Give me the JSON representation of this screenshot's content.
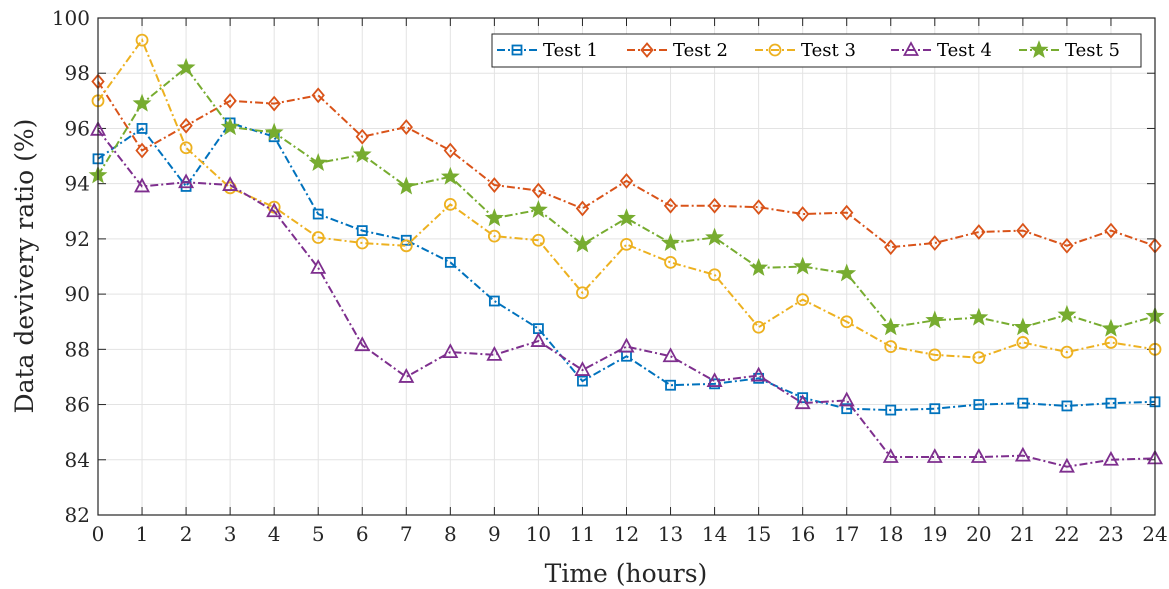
{
  "chart_data": {
    "type": "line",
    "xlabel": "Time (hours)",
    "ylabel": "Data devivery ratio (%)",
    "xlim": [
      0,
      24
    ],
    "ylim": [
      82,
      100
    ],
    "x": [
      0,
      1,
      2,
      3,
      4,
      5,
      6,
      7,
      8,
      9,
      10,
      11,
      12,
      13,
      14,
      15,
      16,
      17,
      18,
      19,
      20,
      21,
      22,
      23,
      24
    ],
    "x_ticks": [
      "0",
      "1",
      "2",
      "3",
      "4",
      "5",
      "6",
      "7",
      "8",
      "9",
      "10",
      "11",
      "12",
      "13",
      "14",
      "15",
      "16",
      "17",
      "18",
      "19",
      "20",
      "21",
      "22",
      "23",
      "24"
    ],
    "y_ticks": [
      "82",
      "84",
      "86",
      "88",
      "90",
      "92",
      "94",
      "96",
      "98",
      "100"
    ],
    "grid": true,
    "legend_position": "top-right",
    "legend_orientation": "horizontal",
    "series": [
      {
        "name": "Test 1",
        "color": "#0072BD",
        "marker": "square",
        "values": [
          94.9,
          96.0,
          93.9,
          96.2,
          95.7,
          92.9,
          92.3,
          91.95,
          91.15,
          89.75,
          88.75,
          86.85,
          87.75,
          86.7,
          86.75,
          86.95,
          86.25,
          85.85,
          85.8,
          85.85,
          86.0,
          86.05,
          85.95,
          86.05,
          86.1
        ]
      },
      {
        "name": "Test 2",
        "color": "#D95319",
        "marker": "diamond",
        "values": [
          97.7,
          95.2,
          96.1,
          97.0,
          96.9,
          97.2,
          95.7,
          96.05,
          95.2,
          93.95,
          93.75,
          93.1,
          94.1,
          93.2,
          93.2,
          93.15,
          92.9,
          92.95,
          91.7,
          91.85,
          92.25,
          92.3,
          91.75,
          92.3,
          91.75
        ]
      },
      {
        "name": "Test 3",
        "color": "#EDB120",
        "marker": "circle",
        "values": [
          97.0,
          99.2,
          95.3,
          93.85,
          93.15,
          92.05,
          91.85,
          91.75,
          93.25,
          92.1,
          91.95,
          90.05,
          91.8,
          91.15,
          90.7,
          88.8,
          89.8,
          89.0,
          88.1,
          87.8,
          87.7,
          88.25,
          87.9,
          88.25,
          88.0
        ]
      },
      {
        "name": "Test 4",
        "color": "#7E2F8E",
        "marker": "triangle",
        "values": [
          95.95,
          93.9,
          94.05,
          93.95,
          93.0,
          90.95,
          88.15,
          87.0,
          87.9,
          87.8,
          88.3,
          87.25,
          88.1,
          87.75,
          86.85,
          87.05,
          86.05,
          86.15,
          84.1,
          84.1,
          84.1,
          84.15,
          83.75,
          84.0,
          84.05
        ]
      },
      {
        "name": "Test 5",
        "color": "#77AC30",
        "marker": "star",
        "values": [
          94.3,
          96.9,
          98.2,
          96.05,
          95.85,
          94.75,
          95.05,
          93.9,
          94.25,
          92.75,
          93.05,
          91.8,
          92.75,
          91.85,
          92.05,
          90.95,
          91.0,
          90.75,
          88.8,
          89.05,
          89.15,
          88.8,
          89.25,
          88.75,
          89.2
        ]
      }
    ]
  }
}
